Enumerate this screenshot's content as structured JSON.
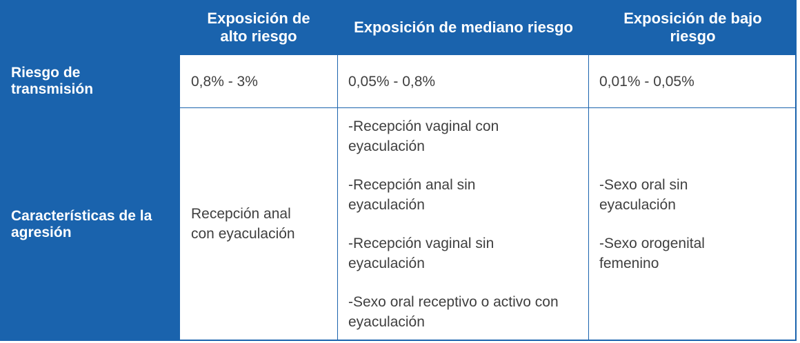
{
  "table": {
    "headers": [
      "",
      "Exposición de alto riesgo",
      "Exposición de mediano riesgo",
      "Exposición de bajo riesgo"
    ],
    "rows": [
      {
        "label": "Riesgo de transmisión",
        "cells": [
          [
            "0,8% - 3%"
          ],
          [
            "0,05% - 0,8%"
          ],
          [
            "0,01% - 0,05%"
          ]
        ]
      },
      {
        "label": "Características de la agresión",
        "cells": [
          [
            "Recepción anal con eyaculación"
          ],
          [
            "-Recepción vaginal con eyaculación",
            "-Recepción anal sin eyaculación",
            "-Recepción vaginal sin eyaculación",
            "-Sexo oral receptivo o activo con eyaculación"
          ],
          [
            "-Sexo oral sin eyaculación",
            "-Sexo orogenital femenino"
          ]
        ]
      }
    ]
  },
  "colors": {
    "header_bg": "#1a63ad",
    "header_text": "#ffffff",
    "body_text": "#3f3f3f",
    "cell_bg": "#ffffff"
  }
}
